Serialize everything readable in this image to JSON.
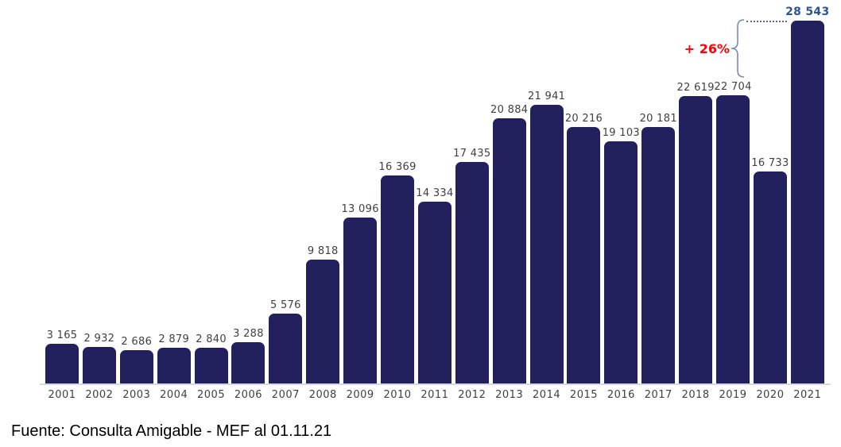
{
  "chart_data": {
    "type": "bar",
    "categories": [
      "2001",
      "2002",
      "2003",
      "2004",
      "2005",
      "2006",
      "2007",
      "2008",
      "2009",
      "2010",
      "2011",
      "2012",
      "2013",
      "2014",
      "2015",
      "2016",
      "2017",
      "2018",
      "2019",
      "2020",
      "2021"
    ],
    "values": [
      3165,
      2932,
      2686,
      2879,
      2840,
      3288,
      5576,
      9818,
      13096,
      16369,
      14334,
      17435,
      20884,
      21941,
      20216,
      19103,
      20181,
      22619,
      22704,
      16733,
      28543
    ],
    "value_labels": [
      "3 165",
      "2 932",
      "2 686",
      "2 879",
      "2 840",
      "3 288",
      "5 576",
      "9 818",
      "13 096",
      "16 369",
      "14 334",
      "17 435",
      "20 884",
      "21 941",
      "20 216",
      "19 103",
      "20 181",
      "22 619",
      "22 704",
      "16 733",
      "28 543"
    ],
    "highlight_index": 20,
    "title": "",
    "xlabel": "",
    "ylabel": "",
    "ylim": [
      0,
      28543
    ],
    "grid": false,
    "legend": false,
    "annotation": {
      "text": "+ 26%"
    },
    "colors": {
      "bar": "#23205e",
      "value_label": "#404040",
      "highlight_label": "#2f5496",
      "annotation_text": "#fb0007",
      "brace": "#7f87b3",
      "baseline": "#d8d7e5"
    }
  },
  "footer": {
    "source": "Fuente: Consulta Amigable - MEF al 01.11.21"
  }
}
